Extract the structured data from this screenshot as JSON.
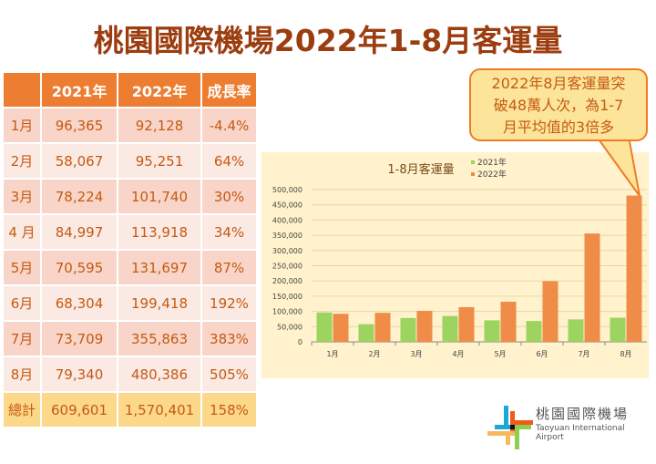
{
  "title": "桃園國際機場2022年1-8月客運量",
  "table": {
    "headers": [
      "",
      "2021年",
      "2022年",
      "成長率"
    ],
    "rows": [
      [
        "1月",
        "96,365",
        "92,128",
        "-4.4%"
      ],
      [
        "2月",
        "58,067",
        "95,251",
        "64%"
      ],
      [
        "3月",
        "78,224",
        "101,740",
        "30%"
      ],
      [
        "4 月",
        "84,997",
        "113,918",
        "34%"
      ],
      [
        "5月",
        "70,595",
        "131,697",
        "87%"
      ],
      [
        "6月",
        "68,304",
        "199,418",
        "192%"
      ],
      [
        "7月",
        "73,709",
        "355,863",
        "383%"
      ],
      [
        "8月",
        "79,340",
        "480,386",
        "505%"
      ]
    ],
    "total": [
      "總計",
      "609,601",
      "1,570,401",
      "158%"
    ]
  },
  "callout": {
    "lines": [
      "2022年8月客運量突",
      "破48萬人次，為1-7",
      "月平均值的3倍多"
    ]
  },
  "logo": {
    "name_zh": "桃園國際機場",
    "name_en": "Taoyuan International Airport"
  },
  "colors": {
    "s2021": "#9dd35f",
    "s2022": "#ef8c48"
  },
  "chart_data": {
    "type": "bar",
    "title": "1-8月客運量",
    "categories": [
      "1月",
      "2月",
      "3月",
      "4月",
      "5月",
      "6月",
      "7月",
      "8月"
    ],
    "series": [
      {
        "name": "2021年",
        "values": [
          96365,
          58067,
          78224,
          84997,
          70595,
          68304,
          73709,
          79340
        ]
      },
      {
        "name": "2022年",
        "values": [
          92128,
          95251,
          101740,
          113918,
          131697,
          199418,
          355863,
          480386
        ]
      }
    ],
    "yticks": [
      "0",
      "50,000",
      "100,000",
      "150,000",
      "200,000",
      "250,000",
      "300,000",
      "350,000",
      "400,000",
      "450,000",
      "500,000"
    ],
    "ylim": [
      0,
      500000
    ],
    "legend": "top-right",
    "grid": true
  }
}
